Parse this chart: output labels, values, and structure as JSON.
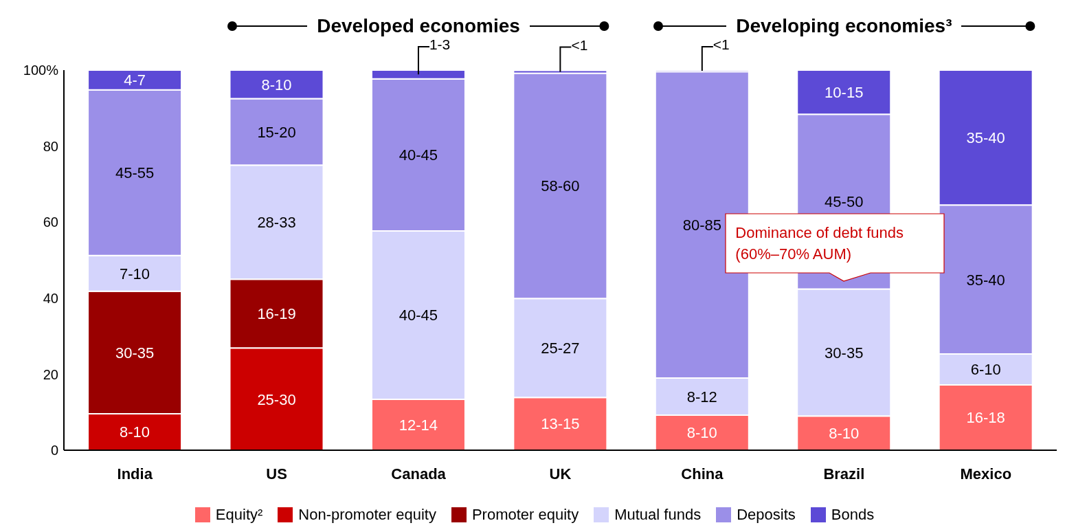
{
  "chart_data": {
    "type": "bar",
    "stacked": true,
    "categories": [
      "India",
      "US",
      "Canada",
      "UK",
      "China",
      "Brazil",
      "Mexico"
    ],
    "series": [
      {
        "name": "Equity²",
        "color": "#ff6666",
        "values": [
          null,
          null,
          13.4,
          13.9,
          9.2,
          9,
          17.2
        ],
        "value_labels": [
          null,
          null,
          "12-14",
          "13-15",
          "8-10",
          "8-10",
          "16-18"
        ]
      },
      {
        "name": "Non-promoter equity",
        "color": "#cc0000",
        "values": [
          9.6,
          26.9,
          null,
          null,
          null,
          null,
          null
        ],
        "value_labels": [
          "8-10",
          "25-30",
          null,
          null,
          null,
          null,
          null
        ]
      },
      {
        "name": "Promoter equity",
        "color": "#990000",
        "values": [
          32.2,
          18.1,
          null,
          null,
          null,
          null,
          null
        ],
        "value_labels": [
          "30-35",
          "16-19",
          null,
          null,
          null,
          null,
          null
        ]
      },
      {
        "name": "Mutual funds",
        "color": "#d4d4fc",
        "values": [
          9.4,
          30,
          44.3,
          26,
          9.8,
          33.4,
          8.1
        ],
        "value_labels": [
          "7-10",
          "28-33",
          "40-45",
          "25-27",
          "8-12",
          "30-35",
          "6-10"
        ]
      },
      {
        "name": "Deposits",
        "color": "#9b8fe8",
        "values": [
          43.6,
          17.5,
          40,
          59.3,
          80.6,
          46,
          39.2
        ],
        "value_labels": [
          "45-55",
          "15-20",
          "40-45",
          "58-60",
          "80-85",
          "45-50",
          "35-40"
        ]
      },
      {
        "name": "Bonds",
        "color": "#5c4ad6",
        "values": [
          5.2,
          7.5,
          2.3,
          0.7,
          0.4,
          11.6,
          35.5
        ],
        "value_labels": [
          "4-7",
          "8-10",
          "1-3",
          "<1",
          "<1",
          "10-15",
          "35-40"
        ]
      }
    ],
    "ylim": [
      0,
      100
    ],
    "yticks": [
      0,
      20,
      40,
      60,
      80,
      {
        "value": 100,
        "label": "100%"
      }
    ],
    "grid": false,
    "legend": "bottom",
    "annotations": [
      "Developed economies",
      "Developing economies³",
      "Dominance of debt funds (60%–70% AUM)"
    ]
  }
}
